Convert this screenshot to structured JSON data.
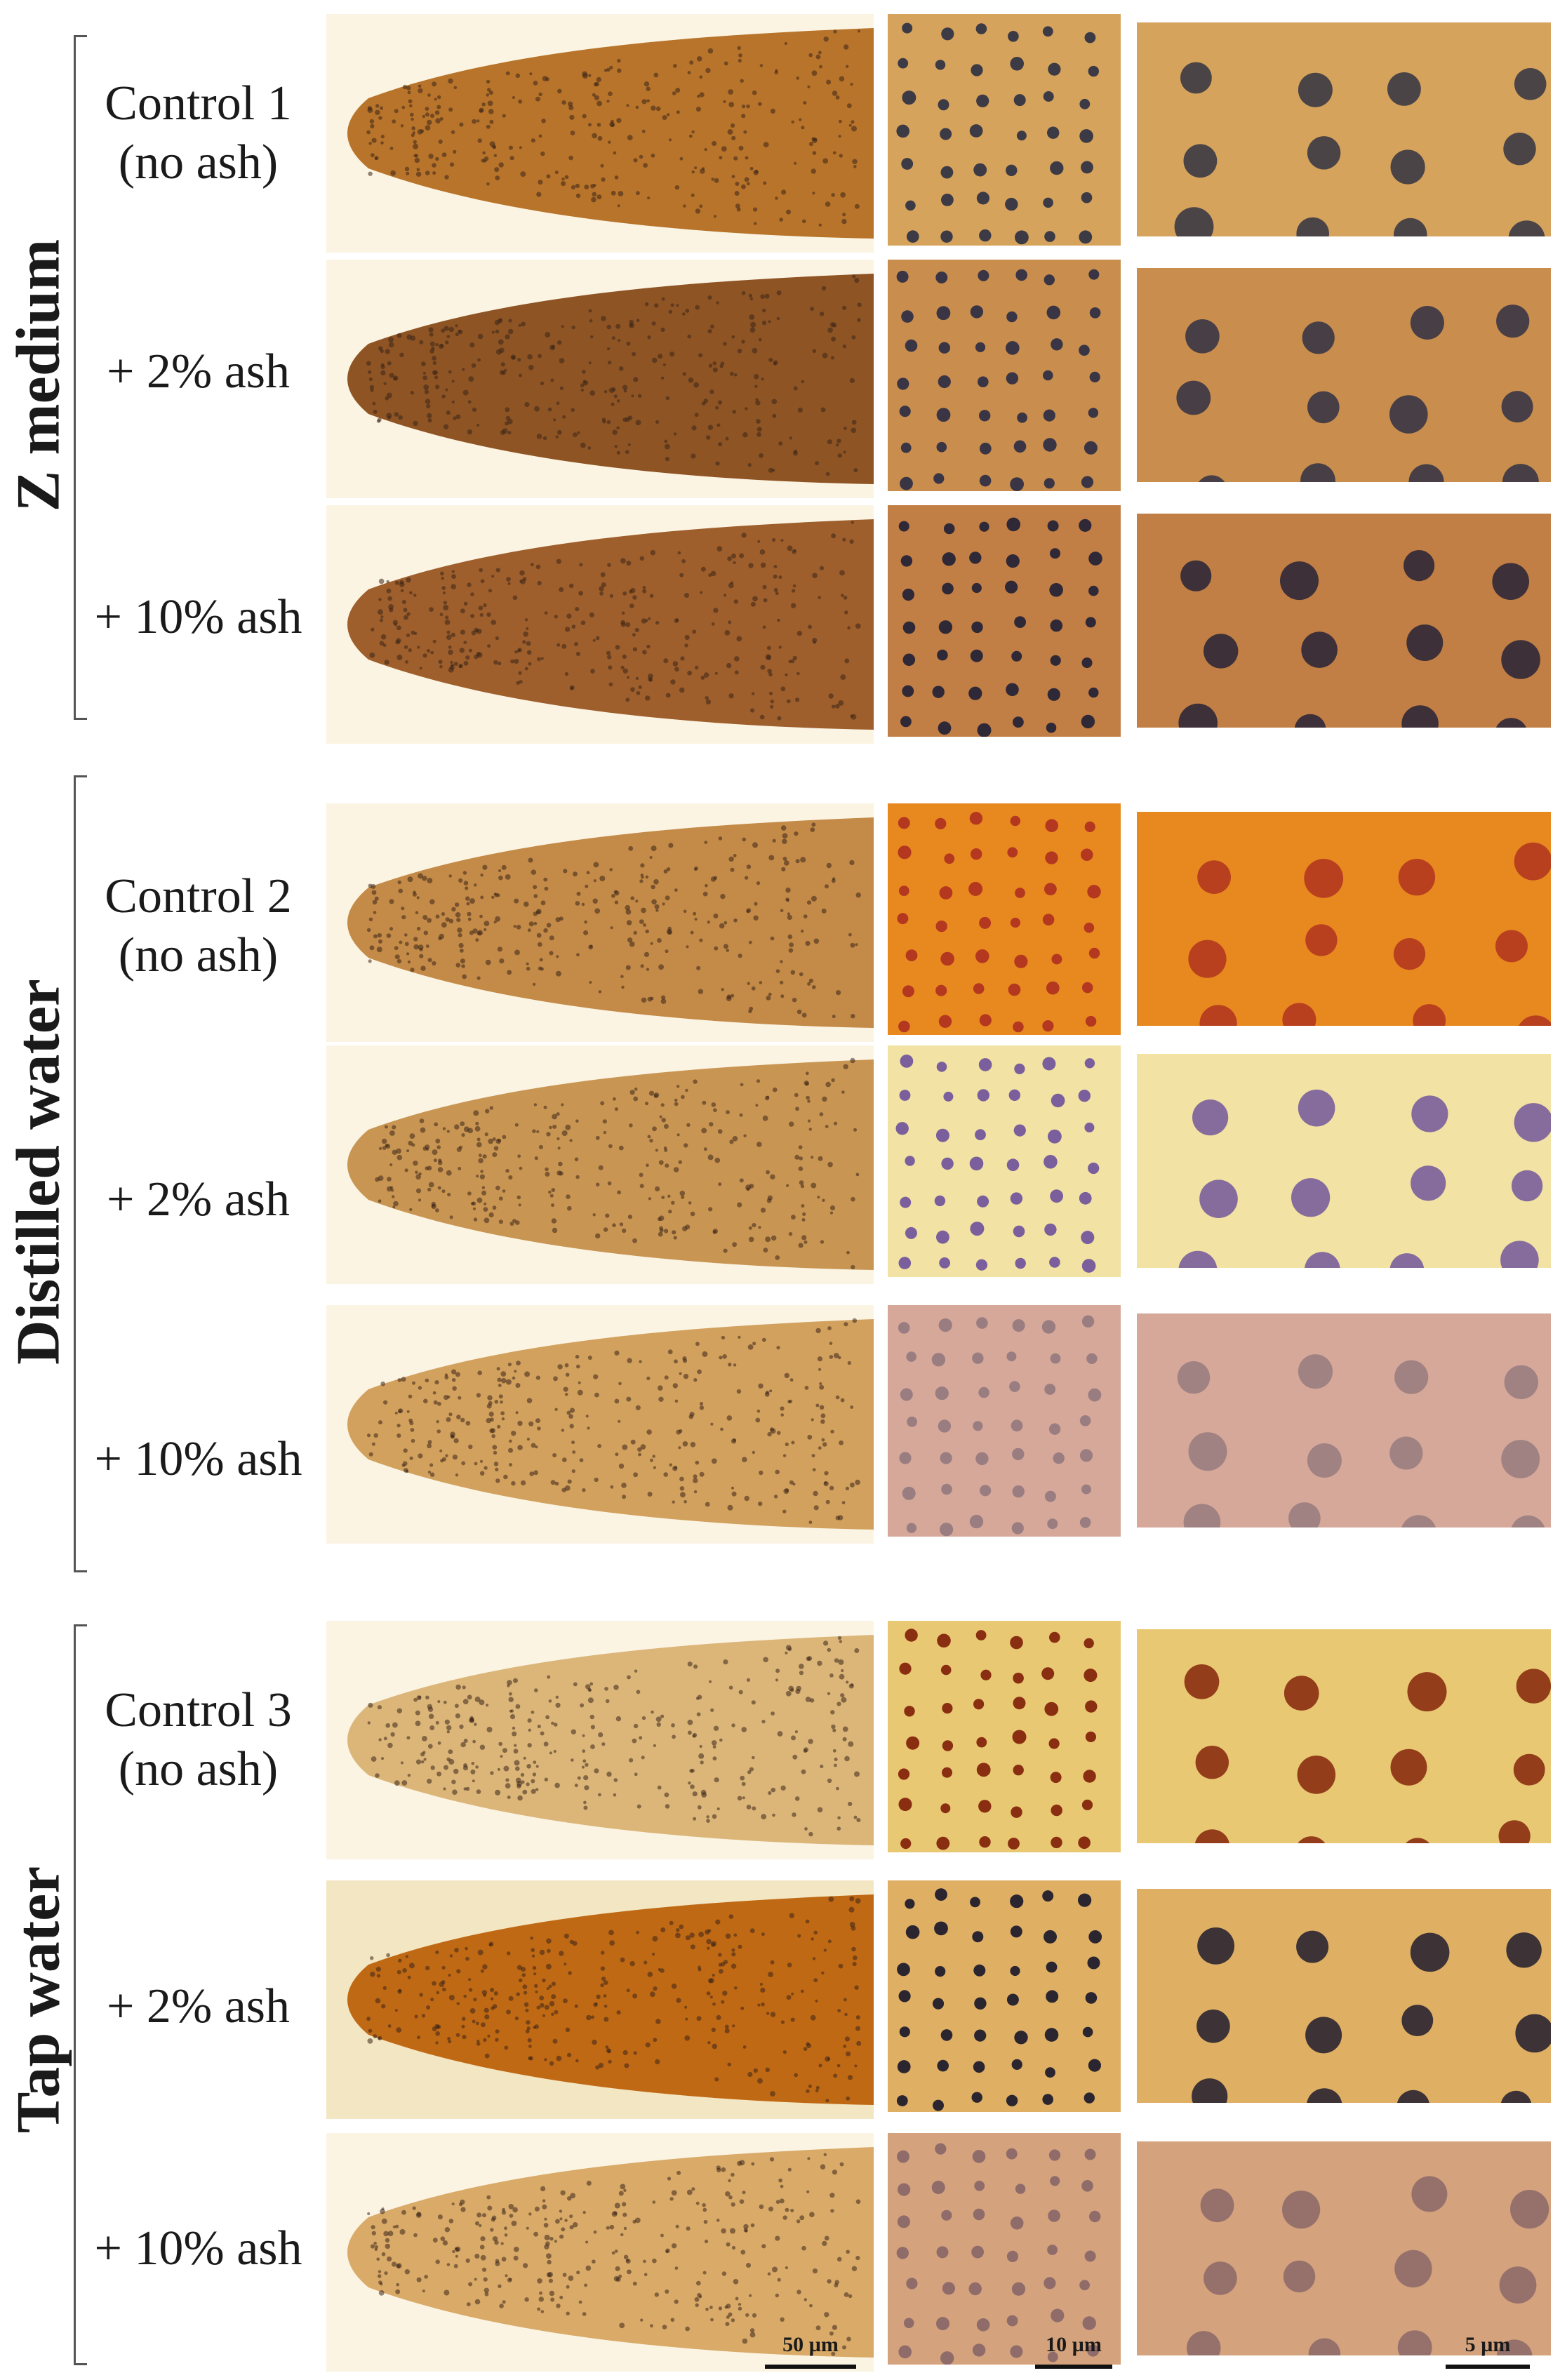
{
  "groups": [
    {
      "label": "Z medium",
      "rows": [
        {
          "label_lines": [
            "Control 1",
            "(no ash)"
          ],
          "root_color": "#b8742a",
          "cell_bg": "#d6a35c",
          "nucleus": "#3b3a45"
        },
        {
          "label_lines": [
            "+ 2% ash"
          ],
          "root_color": "#8f5424",
          "cell_bg": "#c98e4e",
          "nucleus": "#3a3545"
        },
        {
          "label_lines": [
            "+ 10% ash"
          ],
          "root_color": "#9e5f2c",
          "cell_bg": "#c27f45",
          "nucleus": "#2f2836"
        }
      ]
    },
    {
      "label": "Distilled water",
      "rows": [
        {
          "label_lines": [
            "Control 2",
            "(no ash)"
          ],
          "root_color": "#c48a47",
          "cell_bg": "#e8891f",
          "nucleus": "#b3381f"
        },
        {
          "label_lines": [
            "+ 2% ash"
          ],
          "root_color": "#c99552",
          "cell_bg": "#f2e2a4",
          "nucleus": "#7a5f9c"
        },
        {
          "label_lines": [
            "+ 10% ash"
          ],
          "root_color": "#d2a15d",
          "cell_bg": "#d6a89a",
          "nucleus": "#9a7d80"
        }
      ]
    },
    {
      "label": "Tap water",
      "rows": [
        {
          "label_lines": [
            "Control 3",
            "(no ash)"
          ],
          "root_color": "#dcb679",
          "cell_bg": "#e8c872",
          "nucleus": "#8a2e12"
        },
        {
          "label_lines": [
            "+ 2% ash"
          ],
          "root_color": "#c06914",
          "cell_bg": "#dfb064",
          "nucleus": "#2b2530"
        },
        {
          "label_lines": [
            "+ 10% ash"
          ],
          "root_color": "#d9aa68",
          "cell_bg": "#d4a27c",
          "nucleus": "#8f6c6a"
        }
      ]
    }
  ],
  "scale_bars": {
    "root": "50 µm",
    "mid": "10 µm",
    "zoom": "5 µm"
  }
}
